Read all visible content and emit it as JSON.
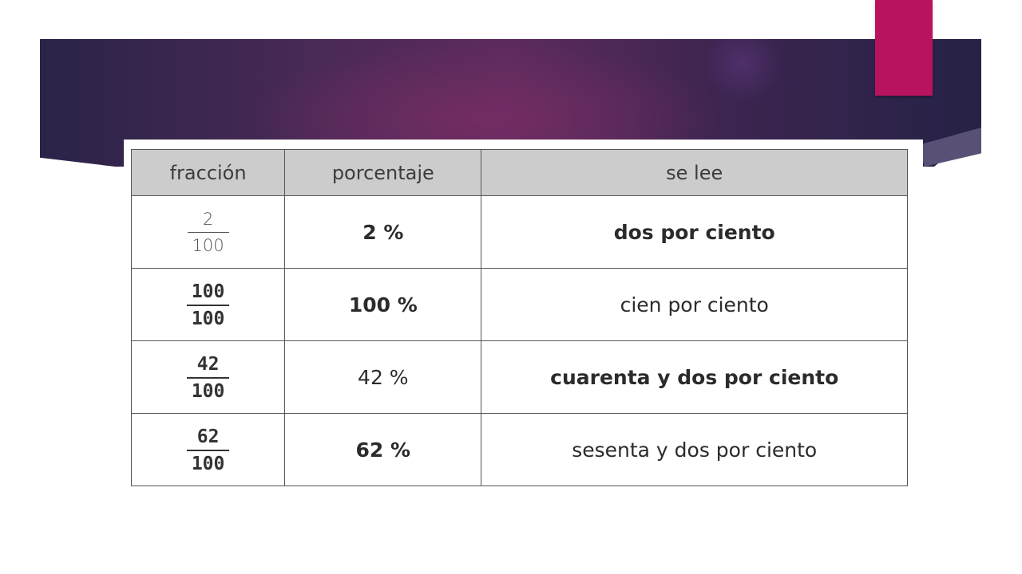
{
  "table": {
    "headers": [
      "fracción",
      "porcentaje",
      "se lee"
    ],
    "rows": [
      {
        "numerator": "2",
        "denominator": "100",
        "percent": "2 %",
        "reading": "dos por ciento"
      },
      {
        "numerator": "100",
        "denominator": "100",
        "percent": "100 %",
        "reading": "cien por ciento"
      },
      {
        "numerator": "42",
        "denominator": "100",
        "percent": "42 %",
        "reading": "cuarenta y dos por ciento"
      },
      {
        "numerator": "62",
        "denominator": "100",
        "percent": "62 %",
        "reading": "sesenta y dos por ciento"
      }
    ]
  },
  "colors": {
    "accent": "#b8135f",
    "banner_dark": "#2a2348",
    "banner_mid": "#5c2b5c",
    "header_bg": "#cccccc"
  }
}
